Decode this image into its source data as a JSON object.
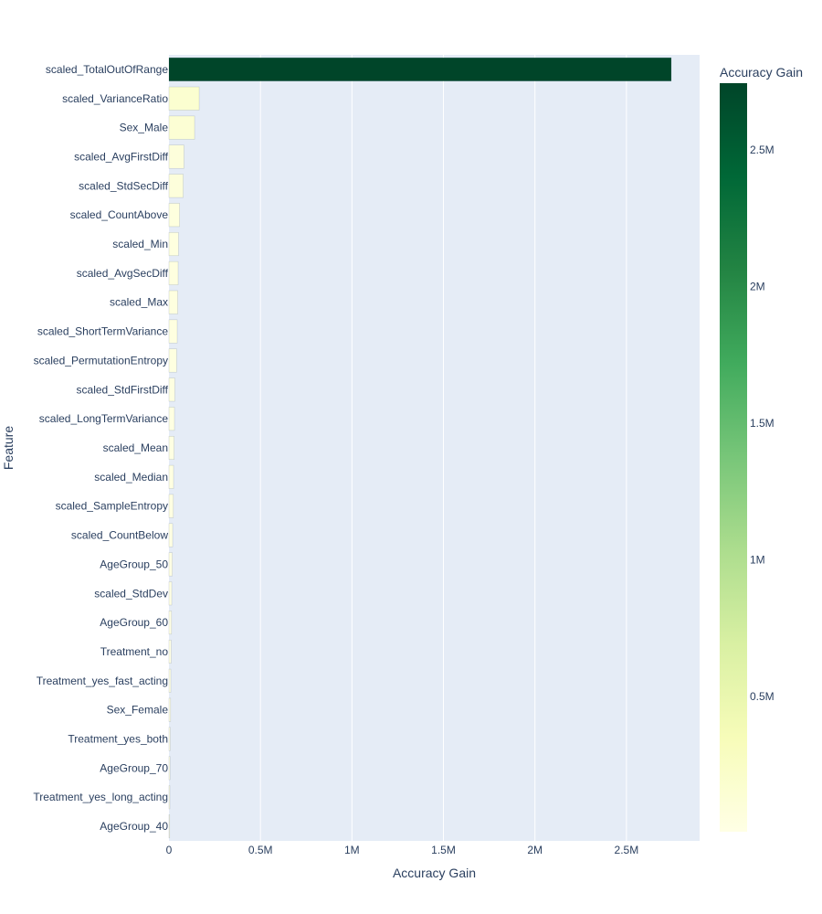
{
  "chart_data": {
    "type": "bar",
    "orientation": "horizontal",
    "title": "",
    "xlabel": "Accuracy Gain",
    "ylabel": "Feature",
    "xlim": [
      0,
      2900000
    ],
    "x_ticks": [
      {
        "value": 0,
        "label": "0"
      },
      {
        "value": 500000,
        "label": "0.5M"
      },
      {
        "value": 1000000,
        "label": "1M"
      },
      {
        "value": 1500000,
        "label": "1.5M"
      },
      {
        "value": 2000000,
        "label": "2M"
      },
      {
        "value": 2500000,
        "label": "2.5M"
      }
    ],
    "grid": true,
    "categories": [
      "scaled_TotalOutOfRange",
      "scaled_VarianceRatio",
      "Sex_Male",
      "scaled_AvgFirstDiff",
      "scaled_StdSecDiff",
      "scaled_CountAbove",
      "scaled_Min",
      "scaled_AvgSecDiff",
      "scaled_Max",
      "scaled_ShortTermVariance",
      "scaled_PermutationEntropy",
      "scaled_StdFirstDiff",
      "scaled_LongTermVariance",
      "scaled_Mean",
      "scaled_Median",
      "scaled_SampleEntropy",
      "scaled_CountBelow",
      "AgeGroup_50",
      "scaled_StdDev",
      "AgeGroup_60",
      "Treatment_no",
      "Treatment_yes_fast_acting",
      "Sex_Female",
      "Treatment_yes_both",
      "AgeGroup_70",
      "Treatment_yes_long_acting",
      "AgeGroup_40"
    ],
    "values": [
      2745000,
      165000,
      140000,
      82000,
      78000,
      58000,
      52000,
      50000,
      48000,
      45000,
      42000,
      32000,
      30000,
      28000,
      25000,
      24000,
      20000,
      18000,
      15000,
      14000,
      12000,
      10000,
      9000,
      7000,
      6000,
      5000,
      4000
    ],
    "colorbar": {
      "title": "Accuracy Gain",
      "colorscale": [
        "#ffffe5",
        "#f7fcb9",
        "#d9f0a3",
        "#addd8e",
        "#78c679",
        "#41ab5d",
        "#238443",
        "#006837",
        "#004529"
      ],
      "cmin": 4000,
      "cmax": 2745000,
      "ticks": [
        {
          "value": 500000,
          "label": "0.5M"
        },
        {
          "value": 1000000,
          "label": "1M"
        },
        {
          "value": 1500000,
          "label": "1.5M"
        },
        {
          "value": 2000000,
          "label": "2M"
        },
        {
          "value": 2500000,
          "label": "2.5M"
        }
      ]
    },
    "plot_bg": "#e5ecf6",
    "grid_color": "#ffffff"
  }
}
